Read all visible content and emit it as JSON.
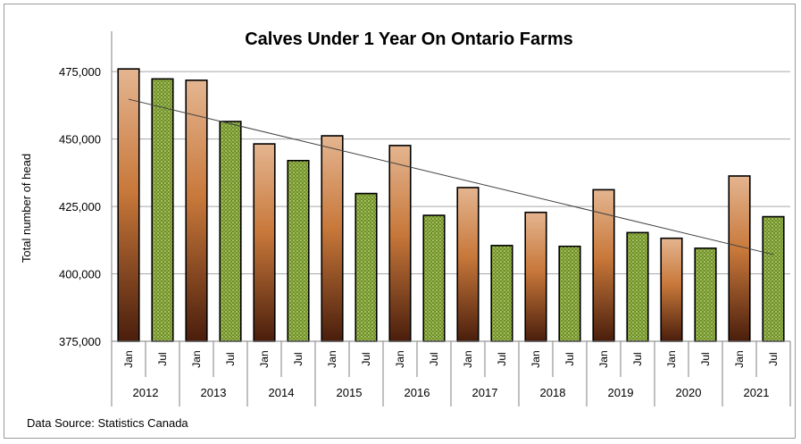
{
  "chart_data": {
    "type": "bar",
    "title": "Calves Under 1 Year On Ontario Farms",
    "ylabel": "Total number of head",
    "xlabel": "",
    "ylim": [
      375000,
      485000
    ],
    "yticks": [
      375000,
      400000,
      425000,
      450000,
      475000
    ],
    "ytick_labels": [
      "375,000",
      "400,000",
      "425,000",
      "450,000",
      "475,000"
    ],
    "grid": true,
    "years": [
      "2012",
      "2013",
      "2014",
      "2015",
      "2016",
      "2017",
      "2018",
      "2019",
      "2020",
      "2021"
    ],
    "sub_categories": [
      "Jan",
      "Jul"
    ],
    "series": [
      {
        "values": [
          476000,
          471800,
          448200,
          451200,
          447600,
          432000,
          422800,
          431200,
          413200,
          436300
        ]
      },
      {
        "values": [
          472300,
          456500,
          442000,
          429800,
          421700,
          410500,
          410200,
          415300,
          409500,
          421200
        ]
      }
    ],
    "trendline": {
      "type": "linear"
    },
    "colors": {
      "jan_top": "#e2b08c",
      "jan_mid": "#c8783a",
      "jan_bottom": "#4a1e0c",
      "jul_fill": "#6f8f2a",
      "jul_dot": "#c9e08a",
      "grid": "#a6a6a6",
      "trend": "#404040"
    },
    "source": "Data Source: Statistics Canada"
  }
}
